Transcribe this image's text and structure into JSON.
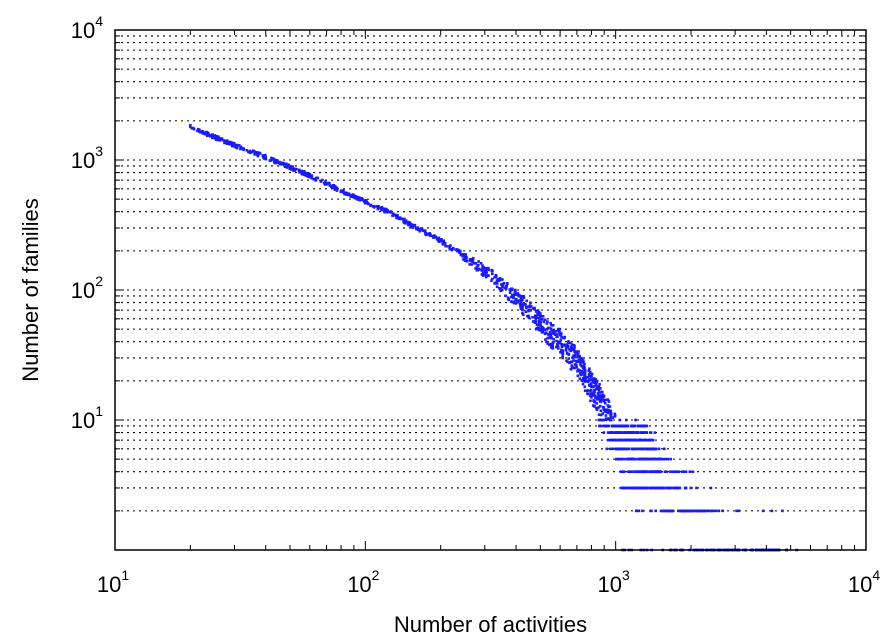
{
  "chart_data": {
    "type": "scatter",
    "title": "",
    "xlabel": "Number of activities",
    "ylabel": "Number of families",
    "x_scale": "log",
    "y_scale": "log",
    "xlim": [
      10,
      10000
    ],
    "ylim": [
      1,
      10000
    ],
    "grid": "dotted horizontal lines at minor and major log ticks",
    "x_ticks": [
      {
        "base": "10",
        "exp": "1"
      },
      {
        "base": "10",
        "exp": "2"
      },
      {
        "base": "10",
        "exp": "3"
      },
      {
        "base": "10",
        "exp": "4"
      }
    ],
    "y_ticks": [
      {
        "base": "10",
        "exp": "1"
      },
      {
        "base": "10",
        "exp": "2"
      },
      {
        "base": "10",
        "exp": "3"
      },
      {
        "base": "10",
        "exp": "4"
      }
    ],
    "marker_color": "#1a1aff",
    "series": [
      {
        "values": [
          {
            "x": 20,
            "y": 1800
          },
          {
            "x": 25,
            "y": 1500
          },
          {
            "x": 30,
            "y": 1300
          },
          {
            "x": 40,
            "y": 1050
          },
          {
            "x": 50,
            "y": 880
          },
          {
            "x": 60,
            "y": 760
          },
          {
            "x": 80,
            "y": 580
          },
          {
            "x": 100,
            "y": 480
          },
          {
            "x": 130,
            "y": 380
          },
          {
            "x": 160,
            "y": 300
          },
          {
            "x": 200,
            "y": 240
          },
          {
            "x": 250,
            "y": 180
          },
          {
            "x": 300,
            "y": 140
          },
          {
            "x": 350,
            "y": 110
          },
          {
            "x": 400,
            "y": 85
          },
          {
            "x": 450,
            "y": 70
          },
          {
            "x": 500,
            "y": 55
          },
          {
            "x": 550,
            "y": 45
          },
          {
            "x": 600,
            "y": 40
          },
          {
            "x": 650,
            "y": 32
          },
          {
            "x": 700,
            "y": 28
          },
          {
            "x": 750,
            "y": 22
          },
          {
            "x": 800,
            "y": 18
          },
          {
            "x": 850,
            "y": 15
          },
          {
            "x": 900,
            "y": 12
          },
          {
            "x": 950,
            "y": 10
          },
          {
            "x": 1000,
            "y": 8
          },
          {
            "x": 1100,
            "y": 7
          },
          {
            "x": 1200,
            "y": 6
          },
          {
            "x": 1300,
            "y": 5
          },
          {
            "x": 1400,
            "y": 4
          },
          {
            "x": 1600,
            "y": 3
          },
          {
            "x": 2000,
            "y": 2
          },
          {
            "x": 3000,
            "y": 1
          },
          {
            "x": 4500,
            "y": 1
          }
        ]
      }
    ]
  }
}
